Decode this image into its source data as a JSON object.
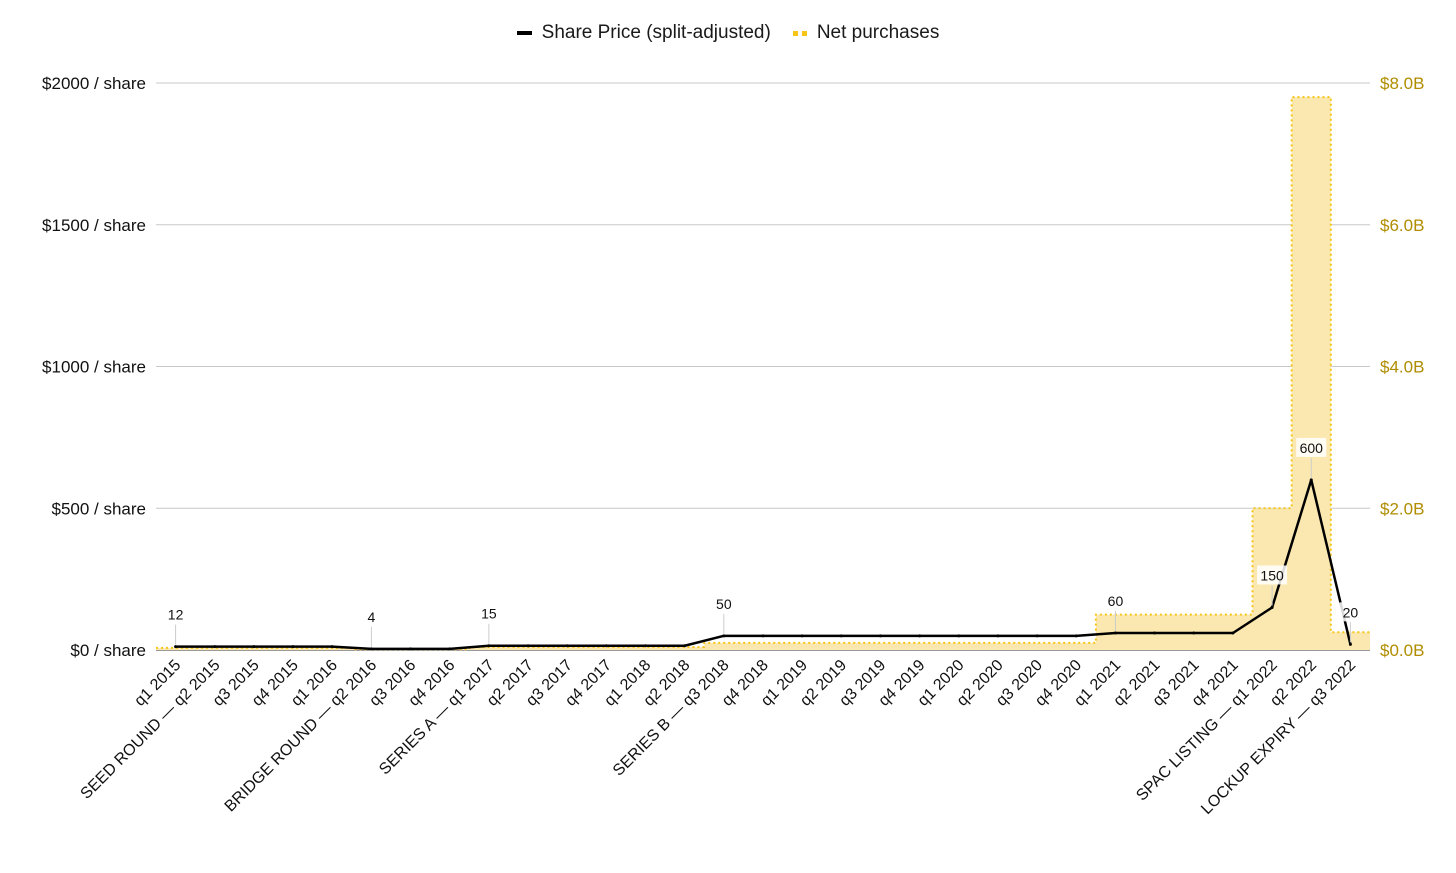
{
  "chart_data": {
    "type": "line",
    "title": "",
    "legend": {
      "placement": "top-center",
      "entries": [
        {
          "name": "Share Price (split-adjusted)",
          "mark": "solid-line",
          "color": "#000000"
        },
        {
          "name": "Net purchases",
          "mark": "dotted-area",
          "color": "#f5c518"
        }
      ]
    },
    "categories": [
      "q1 2015",
      "SEED ROUND — q2 2015",
      "q3 2015",
      "q4 2015",
      "q1 2016",
      "BRIDGE ROUND — q2 2016",
      "q3 2016",
      "q4 2016",
      "SERIES A — q1 2017",
      "q2 2017",
      "q3 2017",
      "q4 2017",
      "q1 2018",
      "q2 2018",
      "SERIES B — q3 2018",
      "q4 2018",
      "q1 2019",
      "q2 2019",
      "q3 2019",
      "q4 2019",
      "q1 2020",
      "q2 2020",
      "q3 2020",
      "q4 2020",
      "q1 2021",
      "q2 2021",
      "q3 2021",
      "q4 2021",
      "SPAC LISTING — q1 2022",
      "q2 2022",
      "LOCKUP EXPIRY — q3 2022"
    ],
    "series": [
      {
        "name": "Share Price (split-adjusted)",
        "type": "line",
        "axis": "left",
        "color": "#000000",
        "values": [
          12,
          12,
          12,
          12,
          12,
          4,
          4,
          4,
          15,
          15,
          15,
          15,
          15,
          15,
          50,
          50,
          50,
          50,
          50,
          50,
          50,
          50,
          50,
          50,
          60,
          60,
          60,
          60,
          150,
          600,
          20
        ],
        "data_labels": [
          {
            "index": 0,
            "text": "12"
          },
          {
            "index": 5,
            "text": "4"
          },
          {
            "index": 8,
            "text": "15"
          },
          {
            "index": 14,
            "text": "50"
          },
          {
            "index": 24,
            "text": "60"
          },
          {
            "index": 28,
            "text": "150"
          },
          {
            "index": 29,
            "text": "600"
          },
          {
            "index": 30,
            "text": "20"
          }
        ]
      },
      {
        "name": "Net purchases",
        "type": "stepped-area",
        "axis": "right",
        "color": "#f5c518",
        "fill": "#fbe8b0",
        "unit": "billion USD",
        "values": [
          0.03,
          0.03,
          0.03,
          0.03,
          0.03,
          0.01,
          0.01,
          0.01,
          0.04,
          0.04,
          0.04,
          0.04,
          0.04,
          0.04,
          0.1,
          0.1,
          0.1,
          0.1,
          0.1,
          0.1,
          0.1,
          0.1,
          0.1,
          0.1,
          0.5,
          0.5,
          0.5,
          0.5,
          2.0,
          7.8,
          0.25
        ]
      }
    ],
    "y_left": {
      "ylim": [
        0,
        2000
      ],
      "ticks": [
        0,
        500,
        1000,
        1500,
        2000
      ],
      "tick_labels": [
        "$0 / share",
        "$500 / share",
        "$1000 / share",
        "$1500 / share",
        "$2000 / share"
      ]
    },
    "y_right": {
      "ylim": [
        0,
        8
      ],
      "ticks": [
        0,
        2,
        4,
        6,
        8
      ],
      "tick_labels": [
        "$0.0B",
        "$2.0B",
        "$4.0B",
        "$6.0B",
        "$8.0B"
      ],
      "color": "#b08d00"
    },
    "grid": true
  }
}
